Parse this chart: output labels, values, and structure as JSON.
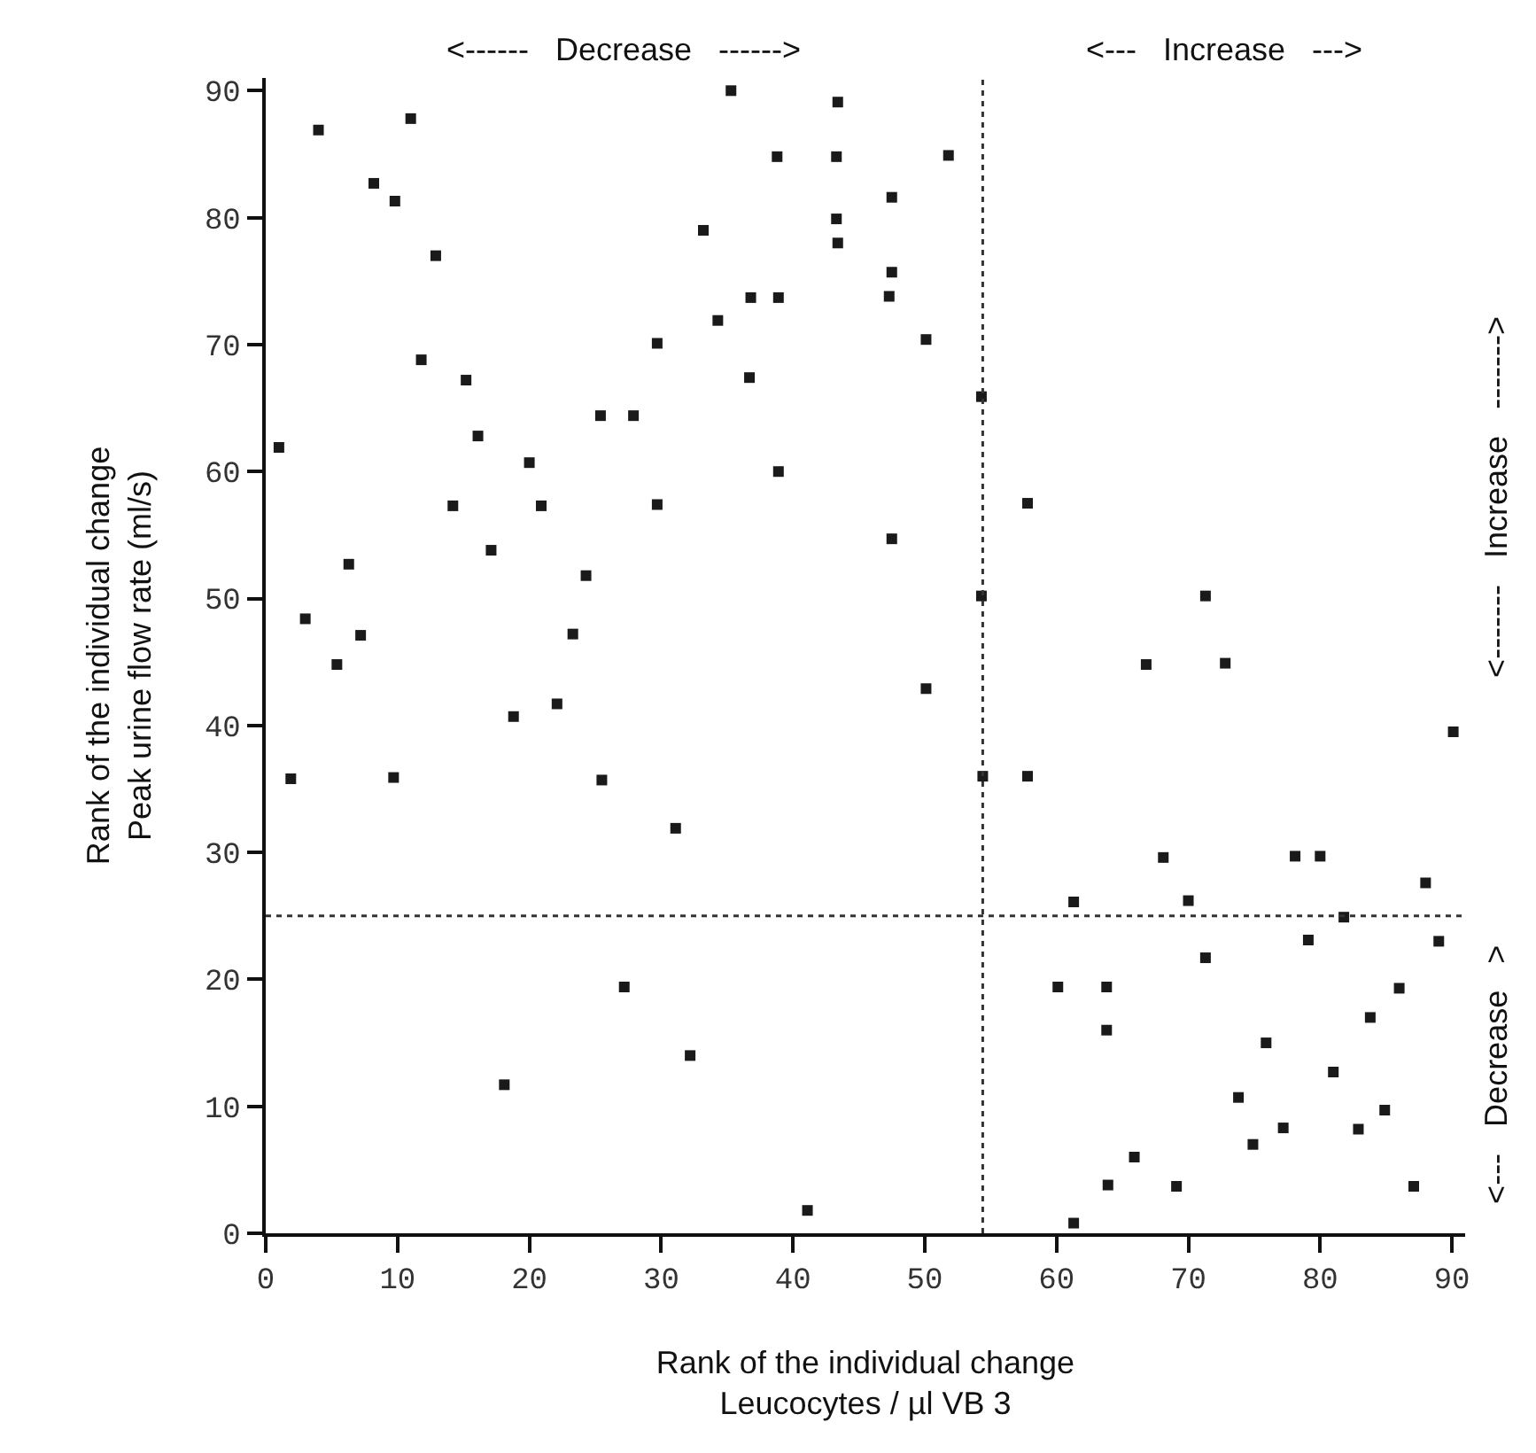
{
  "chart_data": {
    "type": "scatter",
    "xlabel": "Rank of the individual change\nLeucocytes / µl VB 3",
    "ylabel": "Rank of the individual change\nPeak urine flow rate (ml/s)",
    "annotations": [
      "<------   Decrease   ------>",
      "<---   Increase   --->",
      "<-------   Increase   ------->",
      "<---   Decrease   >"
    ],
    "xlim": [
      0,
      91
    ],
    "ylim": [
      0,
      91
    ],
    "xticks": [
      0,
      10,
      20,
      30,
      40,
      50,
      60,
      70,
      80,
      90
    ],
    "yticks": [
      0,
      10,
      20,
      30,
      40,
      50,
      60,
      70,
      80,
      90
    ],
    "marker": "square",
    "ref_lines": [
      {
        "axis": "x",
        "value": 54.4,
        "color": "#333333",
        "line_style": "dotted"
      },
      {
        "axis": "y",
        "value": 25,
        "color": "#333333",
        "line_style": "dotted"
      }
    ],
    "series": [
      {
        "color": "#1a1a1a",
        "x": [
          1.0,
          4.0,
          11.0,
          8.2,
          9.8,
          12.9,
          29.7,
          11.8,
          15.2,
          25.4,
          27.9,
          16.1,
          20.0,
          14.2,
          20.9,
          29.7,
          17.1,
          6.3,
          24.3,
          3.0,
          7.2,
          23.3,
          5.4,
          50.1,
          22.1,
          18.8,
          1.9,
          9.7,
          25.5,
          54.4,
          31.1,
          27.2,
          32.2,
          18.1,
          41.1,
          35.3,
          43.4,
          38.8,
          43.3,
          51.8,
          47.5,
          43.3,
          33.2,
          43.4,
          47.5,
          36.8,
          38.9,
          47.3,
          34.3,
          50.1,
          36.7,
          54.3,
          38.9,
          47.5,
          54.3,
          57.8,
          71.3,
          66.8,
          72.8,
          90.1,
          57.8,
          68.1,
          78.1,
          80.0,
          88.0,
          61.3,
          70.0,
          81.8,
          79.1,
          89.0,
          71.3,
          60.1,
          63.8,
          86.0,
          83.8,
          63.8,
          75.9,
          81.0,
          73.8,
          84.9,
          77.2,
          82.9,
          74.9,
          65.9,
          63.9,
          69.1,
          87.1,
          61.3
        ],
        "values": [
          61.9,
          86.9,
          87.8,
          82.7,
          81.3,
          77.0,
          70.1,
          68.8,
          67.2,
          64.4,
          64.4,
          62.8,
          60.7,
          57.3,
          57.3,
          57.4,
          53.8,
          52.7,
          51.8,
          48.4,
          47.1,
          47.2,
          44.8,
          42.9,
          41.7,
          40.7,
          35.8,
          35.9,
          35.7,
          36.0,
          31.9,
          19.4,
          14.0,
          11.7,
          1.8,
          90.0,
          89.1,
          84.8,
          84.8,
          84.9,
          81.6,
          79.9,
          79.0,
          78.0,
          75.7,
          73.7,
          73.7,
          73.8,
          71.9,
          70.4,
          67.4,
          65.9,
          60.0,
          54.7,
          50.2,
          57.5,
          50.2,
          44.8,
          44.9,
          39.5,
          36.0,
          29.6,
          29.7,
          29.7,
          27.6,
          26.1,
          26.2,
          24.9,
          23.1,
          23.0,
          21.7,
          19.4,
          19.4,
          19.3,
          17.0,
          16.0,
          15.0,
          12.7,
          10.7,
          9.7,
          8.3,
          8.2,
          7.0,
          6.0,
          3.8,
          3.7,
          3.7,
          0.8
        ]
      }
    ]
  }
}
